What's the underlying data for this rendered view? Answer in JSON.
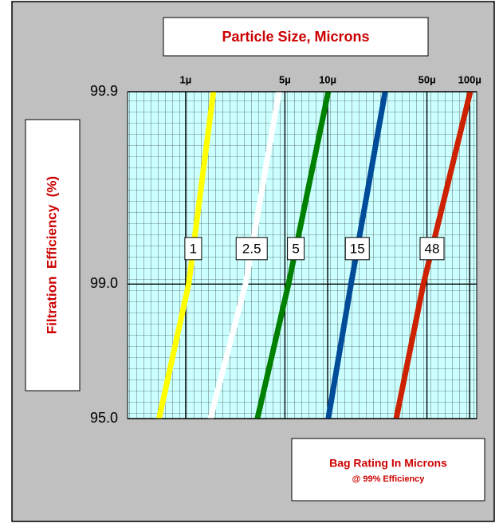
{
  "chart_data": {
    "type": "line",
    "title": "Particle Size, Microns",
    "y_label": "Filtration  Efficiency  (%)",
    "legend_title": "Bag Rating In Microns",
    "legend_subtitle": "@ 99% Efficiency",
    "x_scale": "log",
    "y_scale": "log-complement",
    "xlim": [
      0.39,
      112
    ],
    "ylim": [
      95,
      99.9
    ],
    "xticks": [
      {
        "value": 1,
        "label": "1µ"
      },
      {
        "value": 5,
        "label": "5µ"
      },
      {
        "value": 10,
        "label": "10µ"
      },
      {
        "value": 50,
        "label": "50µ"
      },
      {
        "value": 100,
        "label": "100µ"
      }
    ],
    "yticks": [
      {
        "value": 95,
        "label": "95.0"
      },
      {
        "value": 99,
        "label": "99.0"
      },
      99.9
    ],
    "grid": true,
    "series": [
      {
        "name": "1",
        "color": "#ffff00",
        "x": [
          0.65,
          1.05,
          1.57
        ],
        "values": [
          95,
          99,
          99.9
        ]
      },
      {
        "name": "2.5",
        "color": "#ffffff",
        "x": [
          1.49,
          2.64,
          4.54
        ],
        "values": [
          95,
          99,
          99.9
        ]
      },
      {
        "name": "5",
        "color": "#008000",
        "x": [
          3.2,
          5.3,
          10.1
        ],
        "values": [
          95,
          99,
          99.9
        ]
      },
      {
        "name": "15",
        "color": "#004c99",
        "x": [
          10.1,
          14.6,
          25.4
        ],
        "values": [
          95,
          99,
          99.9
        ]
      },
      {
        "name": "48",
        "color": "#cc2200",
        "x": [
          30.4,
          47.2,
          101
        ],
        "values": [
          95,
          99,
          99.9
        ]
      }
    ]
  }
}
